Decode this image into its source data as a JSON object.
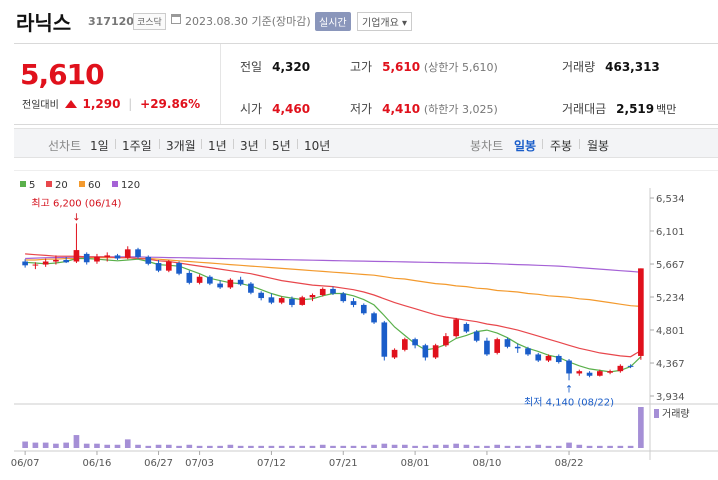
{
  "header": {
    "name": "라닉스",
    "code": "317120",
    "market": "코스닥",
    "date": "2023.08.30",
    "basis": "기준(장마감)",
    "realtime_label": "실시간",
    "overview_label": "기업개요 ▾"
  },
  "summary": {
    "price": "5,610",
    "change_label": "전일대비",
    "change": "1,290",
    "change_rate": "+29.86%",
    "prev_label": "전일",
    "prev": "4,320",
    "open_label": "시가",
    "open": "4,460",
    "high_label": "고가",
    "high": "5,610",
    "upper_limit": "(상한가 5,610)",
    "low_label": "저가",
    "low": "4,410",
    "lower_limit": "(하한가 3,025)",
    "volume_label": "거래량",
    "volume": "463,313",
    "amount_label": "거래대금",
    "amount": "2,519",
    "amount_unit": "백만"
  },
  "toolbar": {
    "line_label": "선차트",
    "periods": [
      "1일",
      "1주일",
      "3개월",
      "1년",
      "3년",
      "5년",
      "10년"
    ],
    "candle_label": "봉차트",
    "candles": [
      "일봉",
      "주봉",
      "월봉"
    ],
    "active_candle": "일봉"
  },
  "colors": {
    "up": "#e0111c",
    "down": "#1a5dc9",
    "ma5": "#5ab04b",
    "ma20": "#e8474c",
    "ma60": "#f39a2e",
    "ma120": "#a562d6",
    "volume": "#a58fd6"
  },
  "chart_data": {
    "type": "candlestick",
    "legend": [
      "5",
      "20",
      "60",
      "120"
    ],
    "yticks": [
      "6,534",
      "6,101",
      "5,667",
      "5,234",
      "4,801",
      "4,367",
      "3,934"
    ],
    "ylim": [
      3934,
      6534
    ],
    "xticks": [
      "06/07",
      "06/16",
      "06/27",
      "07/03",
      "07/12",
      "07/21",
      "08/01",
      "08/10",
      "08/22"
    ],
    "annotations": {
      "high": "최고 6,200 (06/14)",
      "low": "최저 4,140 (08/22)"
    },
    "volume_label": "거래량",
    "candles": [
      {
        "o": 5700,
        "h": 5730,
        "l": 5620,
        "c": 5650
      },
      {
        "o": 5650,
        "h": 5690,
        "l": 5600,
        "c": 5660
      },
      {
        "o": 5660,
        "h": 5740,
        "l": 5630,
        "c": 5700
      },
      {
        "o": 5700,
        "h": 5780,
        "l": 5660,
        "c": 5720
      },
      {
        "o": 5720,
        "h": 5760,
        "l": 5680,
        "c": 5690
      },
      {
        "o": 5700,
        "h": 6200,
        "l": 5680,
        "c": 5850
      },
      {
        "o": 5800,
        "h": 5820,
        "l": 5660,
        "c": 5690
      },
      {
        "o": 5700,
        "h": 5800,
        "l": 5670,
        "c": 5760
      },
      {
        "o": 5760,
        "h": 5820,
        "l": 5700,
        "c": 5780
      },
      {
        "o": 5780,
        "h": 5800,
        "l": 5720,
        "c": 5740
      },
      {
        "o": 5750,
        "h": 5900,
        "l": 5730,
        "c": 5860
      },
      {
        "o": 5860,
        "h": 5880,
        "l": 5740,
        "c": 5760
      },
      {
        "o": 5760,
        "h": 5780,
        "l": 5650,
        "c": 5670
      },
      {
        "o": 5680,
        "h": 5720,
        "l": 5560,
        "c": 5580
      },
      {
        "o": 5580,
        "h": 5720,
        "l": 5560,
        "c": 5700
      },
      {
        "o": 5680,
        "h": 5700,
        "l": 5520,
        "c": 5540
      },
      {
        "o": 5550,
        "h": 5580,
        "l": 5400,
        "c": 5420
      },
      {
        "o": 5420,
        "h": 5530,
        "l": 5400,
        "c": 5500
      },
      {
        "o": 5500,
        "h": 5520,
        "l": 5390,
        "c": 5410
      },
      {
        "o": 5410,
        "h": 5450,
        "l": 5340,
        "c": 5360
      },
      {
        "o": 5360,
        "h": 5480,
        "l": 5340,
        "c": 5460
      },
      {
        "o": 5460,
        "h": 5500,
        "l": 5380,
        "c": 5400
      },
      {
        "o": 5410,
        "h": 5430,
        "l": 5270,
        "c": 5290
      },
      {
        "o": 5290,
        "h": 5310,
        "l": 5190,
        "c": 5220
      },
      {
        "o": 5230,
        "h": 5280,
        "l": 5140,
        "c": 5160
      },
      {
        "o": 5160,
        "h": 5240,
        "l": 5140,
        "c": 5220
      },
      {
        "o": 5210,
        "h": 5240,
        "l": 5100,
        "c": 5130
      },
      {
        "o": 5130,
        "h": 5250,
        "l": 5120,
        "c": 5230
      },
      {
        "o": 5230,
        "h": 5280,
        "l": 5180,
        "c": 5260
      },
      {
        "o": 5260,
        "h": 5360,
        "l": 5240,
        "c": 5340
      },
      {
        "o": 5340,
        "h": 5370,
        "l": 5260,
        "c": 5280
      },
      {
        "o": 5280,
        "h": 5300,
        "l": 5160,
        "c": 5180
      },
      {
        "o": 5180,
        "h": 5220,
        "l": 5100,
        "c": 5130
      },
      {
        "o": 5130,
        "h": 5150,
        "l": 5000,
        "c": 5020
      },
      {
        "o": 5020,
        "h": 5040,
        "l": 4880,
        "c": 4900
      },
      {
        "o": 4900,
        "h": 4920,
        "l": 4400,
        "c": 4450
      },
      {
        "o": 4440,
        "h": 4560,
        "l": 4420,
        "c": 4540
      },
      {
        "o": 4540,
        "h": 4700,
        "l": 4520,
        "c": 4680
      },
      {
        "o": 4680,
        "h": 4700,
        "l": 4560,
        "c": 4600
      },
      {
        "o": 4600,
        "h": 4620,
        "l": 4400,
        "c": 4440
      },
      {
        "o": 4440,
        "h": 4620,
        "l": 4420,
        "c": 4600
      },
      {
        "o": 4600,
        "h": 4760,
        "l": 4580,
        "c": 4720
      },
      {
        "o": 4720,
        "h": 4960,
        "l": 4700,
        "c": 4940
      },
      {
        "o": 4880,
        "h": 4900,
        "l": 4760,
        "c": 4780
      },
      {
        "o": 4780,
        "h": 4800,
        "l": 4640,
        "c": 4660
      },
      {
        "o": 4660,
        "h": 4700,
        "l": 4460,
        "c": 4480
      },
      {
        "o": 4500,
        "h": 4700,
        "l": 4480,
        "c": 4680
      },
      {
        "o": 4680,
        "h": 4700,
        "l": 4560,
        "c": 4580
      },
      {
        "o": 4580,
        "h": 4620,
        "l": 4500,
        "c": 4560
      },
      {
        "o": 4560,
        "h": 4580,
        "l": 4460,
        "c": 4480
      },
      {
        "o": 4480,
        "h": 4500,
        "l": 4380,
        "c": 4400
      },
      {
        "o": 4400,
        "h": 4480,
        "l": 4380,
        "c": 4460
      },
      {
        "o": 4460,
        "h": 4480,
        "l": 4360,
        "c": 4380
      },
      {
        "o": 4400,
        "h": 4420,
        "l": 4140,
        "c": 4230
      },
      {
        "o": 4230,
        "h": 4280,
        "l": 4200,
        "c": 4260
      },
      {
        "o": 4240,
        "h": 4260,
        "l": 4180,
        "c": 4200
      },
      {
        "o": 4200,
        "h": 4280,
        "l": 4190,
        "c": 4260
      },
      {
        "o": 4240,
        "h": 4280,
        "l": 4220,
        "c": 4260
      },
      {
        "o": 4260,
        "h": 4350,
        "l": 4240,
        "c": 4330
      },
      {
        "o": 4330,
        "h": 4350,
        "l": 4300,
        "c": 4320
      },
      {
        "o": 4460,
        "h": 5610,
        "l": 4410,
        "c": 5610
      }
    ],
    "ma5": [
      5690,
      5680,
      5670,
      5680,
      5700,
      5740,
      5740,
      5730,
      5720,
      5710,
      5720,
      5730,
      5700,
      5660,
      5650,
      5640,
      5590,
      5540,
      5480,
      5450,
      5420,
      5410,
      5380,
      5330,
      5280,
      5240,
      5220,
      5200,
      5210,
      5250,
      5280,
      5280,
      5250,
      5200,
      5130,
      4990,
      4840,
      4730,
      4620,
      4540,
      4560,
      4610,
      4690,
      4730,
      4780,
      4800,
      4760,
      4700,
      4620,
      4560,
      4520,
      4470,
      4440,
      4380,
      4330,
      4290,
      4270,
      4250,
      4270,
      4320,
      4450
    ],
    "ma20": [
      5800,
      5790,
      5780,
      5770,
      5770,
      5770,
      5760,
      5760,
      5760,
      5750,
      5750,
      5740,
      5730,
      5710,
      5700,
      5680,
      5660,
      5640,
      5620,
      5600,
      5580,
      5560,
      5540,
      5510,
      5480,
      5450,
      5430,
      5410,
      5390,
      5380,
      5370,
      5350,
      5330,
      5300,
      5260,
      5210,
      5160,
      5120,
      5080,
      5040,
      5000,
      4970,
      4950,
      4930,
      4910,
      4880,
      4860,
      4830,
      4800,
      4760,
      4720,
      4680,
      4640,
      4600,
      4560,
      4530,
      4500,
      4480,
      4460,
      4450,
      4530
    ],
    "ma60": [
      5720,
      5720,
      5730,
      5730,
      5740,
      5740,
      5750,
      5750,
      5750,
      5750,
      5750,
      5740,
      5740,
      5730,
      5720,
      5710,
      5700,
      5690,
      5680,
      5670,
      5660,
      5650,
      5640,
      5630,
      5620,
      5610,
      5600,
      5590,
      5580,
      5570,
      5560,
      5550,
      5540,
      5530,
      5520,
      5500,
      5480,
      5470,
      5450,
      5430,
      5410,
      5400,
      5380,
      5370,
      5350,
      5340,
      5320,
      5310,
      5300,
      5280,
      5270,
      5250,
      5240,
      5230,
      5210,
      5200,
      5180,
      5160,
      5140,
      5120,
      5110
    ],
    "ma120": [
      5740,
      5745,
      5750,
      5752,
      5755,
      5757,
      5760,
      5760,
      5760,
      5760,
      5760,
      5760,
      5757,
      5755,
      5752,
      5750,
      5747,
      5745,
      5742,
      5740,
      5737,
      5735,
      5732,
      5730,
      5727,
      5725,
      5722,
      5720,
      5717,
      5715,
      5712,
      5710,
      5707,
      5705,
      5702,
      5700,
      5697,
      5695,
      5692,
      5690,
      5687,
      5685,
      5682,
      5680,
      5677,
      5675,
      5670,
      5665,
      5660,
      5655,
      5650,
      5645,
      5640,
      5630,
      5620,
      5610,
      5600,
      5590,
      5580,
      5570,
      5560
    ],
    "volume": [
      6,
      5,
      5,
      4,
      5,
      12,
      4,
      4,
      3,
      3,
      8,
      3,
      2,
      3,
      3,
      2,
      3,
      2,
      2,
      2,
      3,
      2,
      2,
      2,
      2,
      2,
      2,
      2,
      2,
      3,
      2,
      2,
      2,
      2,
      3,
      4,
      3,
      3,
      2,
      2,
      3,
      3,
      4,
      3,
      2,
      2,
      3,
      2,
      2,
      2,
      3,
      2,
      2,
      5,
      3,
      2,
      2,
      2,
      2,
      2,
      38
    ]
  }
}
